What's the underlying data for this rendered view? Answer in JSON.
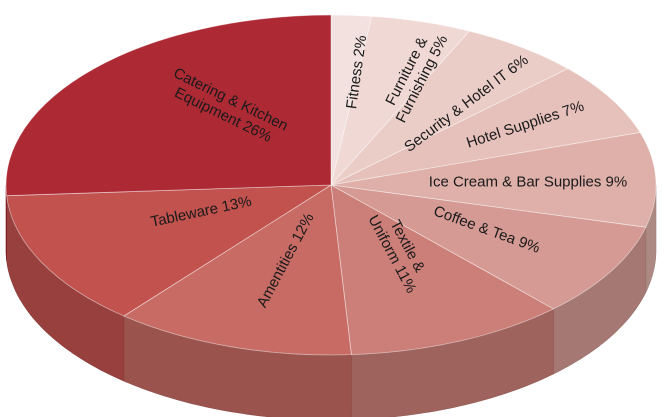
{
  "chart_data": {
    "type": "pie",
    "title": "",
    "start": "12 o'clock, clockwise",
    "slices": [
      {
        "label": "Fitness 2%",
        "value": 2,
        "color": "#f2e1df"
      },
      {
        "label": "Furniture & Furnishing 5%",
        "value": 5,
        "color": "#f0d8d4"
      },
      {
        "label": "Security & Hotel IT 6%",
        "value": 6,
        "color": "#ebcdc8"
      },
      {
        "label": "Hotel Supplies 7%",
        "value": 7,
        "color": "#e6c1bb"
      },
      {
        "label": "Ice Cream & Bar Supplies 9%",
        "value": 9,
        "color": "#deb0a9"
      },
      {
        "label": "Coffee & Tea 9%",
        "value": 9,
        "color": "#d49a93"
      },
      {
        "label": "Textile & Uniform 11%",
        "value": 11,
        "color": "#cc7f78"
      },
      {
        "label": "Amentities 12%",
        "value": 12,
        "color": "#c76b64"
      },
      {
        "label": "Tableware 13%",
        "value": 13,
        "color": "#c1524e"
      },
      {
        "label": "Catering & Kitchen Equipment 26%",
        "value": 26,
        "color": "#ad2a35"
      }
    ]
  }
}
